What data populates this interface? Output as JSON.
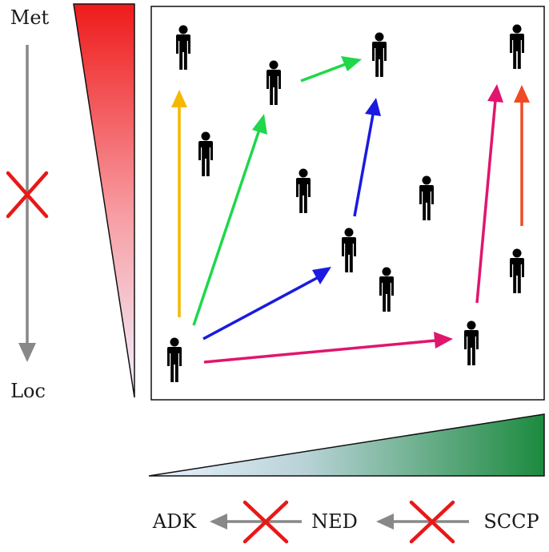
{
  "labels": {
    "top": "Met",
    "bottom": "Loc",
    "adk": "ADK",
    "ned": "NED",
    "sccp": "SCCP"
  },
  "colors": {
    "yellow_arrow": "#f5b800",
    "green_arrow": "#1ed84a",
    "blue_arrow": "#1a1ae0",
    "magenta_arrow": "#e0156e",
    "orange_arrow": "#f04a24",
    "gray_arrow": "#888888",
    "red_x": "#e81818",
    "red_wedge": "#ef1b1b",
    "green_wedge": "#1c8a3e",
    "person": "#000000"
  },
  "icons": [
    "person-icon",
    "cross-icon",
    "arrow-icon"
  ]
}
